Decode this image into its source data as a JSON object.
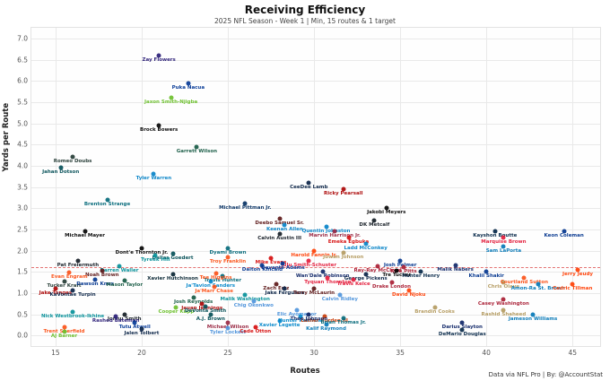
{
  "header": {
    "title": "Receiving Efficiency",
    "subtitle": "2025 NFL Season - Week 1 | Min, 15 routes & 1 target"
  },
  "footer": {
    "credit": "Data via NFL Pro | By: @AccountStat"
  },
  "chart_data": {
    "type": "scatter",
    "title": "Receiving Efficiency",
    "subtitle": "2025 NFL Season - Week 1 | Min, 15 routes & 1 target",
    "xlabel": "Routes",
    "ylabel": "Yards per Route",
    "xlim": [
      13.6,
      46.6
    ],
    "ylim": [
      -0.25,
      7.25
    ],
    "x_ticks": [
      15,
      20,
      25,
      30,
      35,
      40,
      45
    ],
    "y_ticks": [
      0.0,
      0.5,
      1.0,
      1.5,
      2.0,
      2.5,
      3.0,
      3.5,
      4.0,
      4.5,
      5.0,
      5.5,
      6.0,
      6.5,
      7.0
    ],
    "grid": true,
    "legend": "none",
    "reference_line": {
      "y": 1.6,
      "color": "#e05c5c",
      "style": "dashed"
    },
    "points": [
      {
        "name": "Zay Flowers",
        "x": 21,
        "y": 6.6,
        "color": "#241773"
      },
      {
        "name": "Puka Nacua",
        "x": 22.7,
        "y": 5.95,
        "color": "#003594"
      },
      {
        "name": "Jaxon Smith-Njigba",
        "x": 21.7,
        "y": 5.6,
        "color": "#69BE28"
      },
      {
        "name": "Brock Bowers",
        "x": 21,
        "y": 4.95,
        "color": "#000000"
      },
      {
        "name": "Garrett Wilson",
        "x": 23.2,
        "y": 4.45,
        "color": "#125740"
      },
      {
        "name": "Romeo Doubs",
        "x": 16,
        "y": 4.2,
        "color": "#203731"
      },
      {
        "name": "Jahan Dotson",
        "x": 15.3,
        "y": 3.95,
        "color": "#004C54"
      },
      {
        "name": "Tyler Warren",
        "x": 20.7,
        "y": 3.8,
        "color": "#0080C6"
      },
      {
        "name": "CeeDee Lamb",
        "x": 29.7,
        "y": 3.6,
        "color": "#041E42"
      },
      {
        "name": "Ricky Pearsall",
        "x": 31.7,
        "y": 3.45,
        "color": "#AA0000"
      },
      {
        "name": "Brenton Strange",
        "x": 18,
        "y": 3.2,
        "color": "#006778"
      },
      {
        "name": "Michael Pittman Jr.",
        "x": 26,
        "y": 3.1,
        "color": "#002C5F"
      },
      {
        "name": "Jakobi Meyers",
        "x": 34.2,
        "y": 3.0,
        "color": "#000000"
      },
      {
        "name": "Deebo Samuel Sr.",
        "x": 28,
        "y": 2.75,
        "color": "#5A1414"
      },
      {
        "name": "DK Metcalf",
        "x": 33.5,
        "y": 2.7,
        "color": "#101820"
      },
      {
        "name": "Keenan Allen",
        "x": 28.3,
        "y": 2.6,
        "color": "#0080C6"
      },
      {
        "name": "Quentin Johnston",
        "x": 30.7,
        "y": 2.55,
        "color": "#0080C6"
      },
      {
        "name": "Marvin Harrison Jr.",
        "x": 31.2,
        "y": 2.45,
        "color": "#97233F"
      },
      {
        "name": "Calvin Austin III",
        "x": 28,
        "y": 2.4,
        "color": "#101820"
      },
      {
        "name": "Michael Mayer",
        "x": 16.7,
        "y": 2.45,
        "color": "#000000"
      },
      {
        "name": "Kayshon Boutte",
        "x": 40.5,
        "y": 2.45,
        "color": "#002244"
      },
      {
        "name": "Keon Coleman",
        "x": 44.5,
        "y": 2.45,
        "color": "#00338D"
      },
      {
        "name": "Marquise Brown",
        "x": 41,
        "y": 2.3,
        "color": "#E31837"
      },
      {
        "name": "Emeka Egbuka",
        "x": 32,
        "y": 2.3,
        "color": "#D50A0A"
      },
      {
        "name": "Sam LaPorta",
        "x": 41,
        "y": 2.1,
        "color": "#0076B6"
      },
      {
        "name": "Ladd McConkey",
        "x": 33,
        "y": 2.15,
        "color": "#0080C6"
      },
      {
        "name": "Dont'e Thornton Jr.",
        "x": 20,
        "y": 2.05,
        "color": "#000000"
      },
      {
        "name": "Dyami Brown",
        "x": 25,
        "y": 2.05,
        "color": "#006778"
      },
      {
        "name": "Harold Fannin Jr.",
        "x": 30,
        "y": 2.0,
        "color": "#FF3C00"
      },
      {
        "name": "Dallas Goedert",
        "x": 21.8,
        "y": 1.93,
        "color": "#004C54"
      },
      {
        "name": "Tyreek Hill",
        "x": 20.8,
        "y": 1.88,
        "color": "#008E97"
      },
      {
        "name": "Juwan Johnson",
        "x": 31.7,
        "y": 1.95,
        "color": "#B3995D"
      },
      {
        "name": "Mike Evans",
        "x": 27.5,
        "y": 1.82,
        "color": "#D50A0A"
      },
      {
        "name": "Troy Franklin",
        "x": 25,
        "y": 1.85,
        "color": "#FB4F14"
      },
      {
        "name": "JuJu Smith-Schuster",
        "x": 29.7,
        "y": 1.75,
        "color": "#E31837"
      },
      {
        "name": "Josh Palmer",
        "x": 35,
        "y": 1.75,
        "color": "#00338D"
      },
      {
        "name": "Pat Freiermuth",
        "x": 16.3,
        "y": 1.75,
        "color": "#101820"
      },
      {
        "name": "Davante Adams",
        "x": 28.2,
        "y": 1.7,
        "color": "#003594"
      },
      {
        "name": "Dalton Kincaid",
        "x": 27,
        "y": 1.65,
        "color": "#00338D"
      },
      {
        "name": "Darren Waller",
        "x": 18.7,
        "y": 1.62,
        "color": "#008E97"
      },
      {
        "name": "Malik Nabers",
        "x": 38.2,
        "y": 1.65,
        "color": "#0B2265"
      },
      {
        "name": "Ray-Ray McCloud",
        "x": 33.7,
        "y": 1.62,
        "color": "#A71930"
      },
      {
        "name": "Kyle Pitts",
        "x": 35.2,
        "y": 1.6,
        "color": "#A71930"
      },
      {
        "name": "Tre Tucker",
        "x": 34.8,
        "y": 1.52,
        "color": "#000000"
      },
      {
        "name": "Hunter Henry",
        "x": 36.2,
        "y": 1.5,
        "color": "#002244"
      },
      {
        "name": "Khalil Shakir",
        "x": 40,
        "y": 1.5,
        "color": "#00338D"
      },
      {
        "name": "Jerry Jeudy",
        "x": 45.3,
        "y": 1.55,
        "color": "#FF3C00"
      },
      {
        "name": "Noah Brown",
        "x": 17.7,
        "y": 1.52,
        "color": "#5A1414"
      },
      {
        "name": "Evan Engram",
        "x": 15.8,
        "y": 1.48,
        "color": "#FB4F14"
      },
      {
        "name": "Wan'Dale Robinson",
        "x": 30.5,
        "y": 1.5,
        "color": "#0B2265"
      },
      {
        "name": "George Pickens",
        "x": 33,
        "y": 1.45,
        "color": "#041E42"
      },
      {
        "name": "Travis Hunter",
        "x": 24.7,
        "y": 1.4,
        "color": "#006778"
      },
      {
        "name": "Tee Higgins",
        "x": 24.3,
        "y": 1.47,
        "color": "#FB4F14"
      },
      {
        "name": "Xavier Hutchinson",
        "x": 21.8,
        "y": 1.44,
        "color": "#03202F"
      },
      {
        "name": "Tucker Kraft",
        "x": 15.5,
        "y": 1.27,
        "color": "#203731"
      },
      {
        "name": "Dawson Knox",
        "x": 17.3,
        "y": 1.32,
        "color": "#00338D"
      },
      {
        "name": "Mason Taylor",
        "x": 19,
        "y": 1.3,
        "color": "#125740"
      },
      {
        "name": "Ja'Tavion Sanders",
        "x": 24,
        "y": 1.27,
        "color": "#0085CA"
      },
      {
        "name": "Travis Kelce",
        "x": 32.3,
        "y": 1.32,
        "color": "#E31837"
      },
      {
        "name": "Tyquan Thornton",
        "x": 30.8,
        "y": 1.35,
        "color": "#E31837"
      },
      {
        "name": "Zach Ertz",
        "x": 27.8,
        "y": 1.2,
        "color": "#5A1414"
      },
      {
        "name": "Jake Ferguson",
        "x": 28.3,
        "y": 1.1,
        "color": "#041E42"
      },
      {
        "name": "Terry McLaurin",
        "x": 30,
        "y": 1.1,
        "color": "#5A1414"
      },
      {
        "name": "Drake London",
        "x": 34.5,
        "y": 1.25,
        "color": "#A71930"
      },
      {
        "name": "David Njoku",
        "x": 35.5,
        "y": 1.05,
        "color": "#FF3C00"
      },
      {
        "name": "Chris Olave",
        "x": 41,
        "y": 1.25,
        "color": "#B3995D"
      },
      {
        "name": "Courtland Sutton",
        "x": 42.2,
        "y": 1.35,
        "color": "#FB4F14"
      },
      {
        "name": "Amon-Ra St. Brown",
        "x": 43,
        "y": 1.2,
        "color": "#0076B6"
      },
      {
        "name": "Cedric Tillman",
        "x": 45,
        "y": 1.2,
        "color": "#FF3C00"
      },
      {
        "name": "Jake Tonges",
        "x": 15,
        "y": 1.1,
        "color": "#AA0000"
      },
      {
        "name": "KaVontae Turpin",
        "x": 16,
        "y": 1.05,
        "color": "#041E42"
      },
      {
        "name": "Ja'Marr Chase",
        "x": 24.2,
        "y": 1.15,
        "color": "#FB4F14"
      },
      {
        "name": "Casey Washington",
        "x": 41,
        "y": 0.85,
        "color": "#A71930"
      },
      {
        "name": "Josh Reynolds",
        "x": 23,
        "y": 0.9,
        "color": "#125740"
      },
      {
        "name": "Malik Washington",
        "x": 26,
        "y": 0.95,
        "color": "#008E97"
      },
      {
        "name": "Calvin Ridley",
        "x": 31.5,
        "y": 0.95,
        "color": "#4B92DB"
      },
      {
        "name": "Chig Okonkwo",
        "x": 26.5,
        "y": 0.8,
        "color": "#4B92DB"
      },
      {
        "name": "Jauan Jennings",
        "x": 23.5,
        "y": 0.75,
        "color": "#AA0000"
      },
      {
        "name": "Cooper Kupp",
        "x": 22,
        "y": 0.65,
        "color": "#69BE28"
      },
      {
        "name": "DeVonta Smith",
        "x": 23.7,
        "y": 0.68,
        "color": "#004C54"
      },
      {
        "name": "Elic Ayomanor",
        "x": 29,
        "y": 0.6,
        "color": "#4B92DB"
      },
      {
        "name": "Brandin Cooks",
        "x": 37,
        "y": 0.65,
        "color": "#B3995D"
      },
      {
        "name": "Rashid Shaheed",
        "x": 41,
        "y": 0.6,
        "color": "#B3995D"
      },
      {
        "name": "Jameson Williams",
        "x": 42.7,
        "y": 0.5,
        "color": "#0076B6"
      },
      {
        "name": "Nick Westbrook-Ikhine",
        "x": 16,
        "y": 0.55,
        "color": "#008E97"
      },
      {
        "name": "Jonnu Smith",
        "x": 19,
        "y": 0.5,
        "color": "#101820"
      },
      {
        "name": "Rashod Bateman",
        "x": 18.5,
        "y": 0.44,
        "color": "#241773"
      },
      {
        "name": "A.J. Brown",
        "x": 24,
        "y": 0.5,
        "color": "#004C54"
      },
      {
        "name": "Hunter Renfrow",
        "x": 29.2,
        "y": 0.45,
        "color": "#0085CA"
      },
      {
        "name": "Xavier Legette",
        "x": 28,
        "y": 0.35,
        "color": "#0085CA"
      },
      {
        "name": "Luther Burden III",
        "x": 30.6,
        "y": 0.44,
        "color": "#C83803"
      },
      {
        "name": "Brian Thomas Jr.",
        "x": 31.7,
        "y": 0.4,
        "color": "#006778"
      },
      {
        "name": "Theo Johnson",
        "x": 29.7,
        "y": 0.5,
        "color": "#0B2265"
      },
      {
        "name": "Kalif Raymond",
        "x": 30.7,
        "y": 0.25,
        "color": "#0076B6"
      },
      {
        "name": "Tutu Atwell",
        "x": 19.6,
        "y": 0.3,
        "color": "#003594"
      },
      {
        "name": "Trent Sherfield",
        "x": 15.5,
        "y": 0.2,
        "color": "#FB4F14"
      },
      {
        "name": "AJ Barner",
        "x": 15.5,
        "y": 0.08,
        "color": "#69BE28"
      },
      {
        "name": "Jalen Tolbert",
        "x": 20,
        "y": 0.15,
        "color": "#041E42"
      },
      {
        "name": "Michael Wilson",
        "x": 25,
        "y": 0.3,
        "color": "#97233F"
      },
      {
        "name": "Tyler Lockett",
        "x": 25,
        "y": 0.18,
        "color": "#4B92DB"
      },
      {
        "name": "Cade Otton",
        "x": 26.6,
        "y": 0.2,
        "color": "#D50A0A"
      },
      {
        "name": "Darius Slayton",
        "x": 38.6,
        "y": 0.3,
        "color": "#0B2265"
      },
      {
        "name": "DeMario Douglas",
        "x": 38.6,
        "y": 0.12,
        "color": "#002244"
      }
    ]
  }
}
